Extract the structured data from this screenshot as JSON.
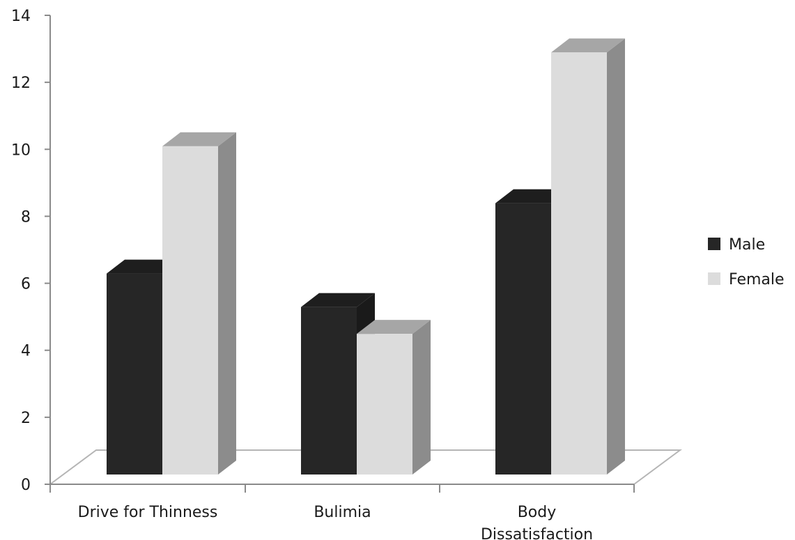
{
  "chart_data": {
    "type": "bar",
    "style": "3d-clustered-column",
    "categories": [
      [
        "Drive for Thinness"
      ],
      [
        "Bulimia"
      ],
      [
        "Body",
        "Dissatisfaction"
      ]
    ],
    "series": [
      {
        "name": "Male",
        "values": [
          6.0,
          5.0,
          8.1
        ],
        "color": "#262626",
        "side_color": "#1a1a1a",
        "top_color": "#1e1e1e"
      },
      {
        "name": "Female",
        "values": [
          9.8,
          4.2,
          12.6
        ],
        "color": "#dcdcdc",
        "side_color": "#8c8c8c",
        "top_color": "#a6a6a6"
      }
    ],
    "ylim": [
      0,
      14
    ],
    "yticks": [
      "0",
      "2",
      "4",
      "6",
      "8",
      "10",
      "12",
      "14"
    ],
    "grid": false,
    "legend_position": "right",
    "title": "",
    "xlabel": "",
    "ylabel": ""
  }
}
